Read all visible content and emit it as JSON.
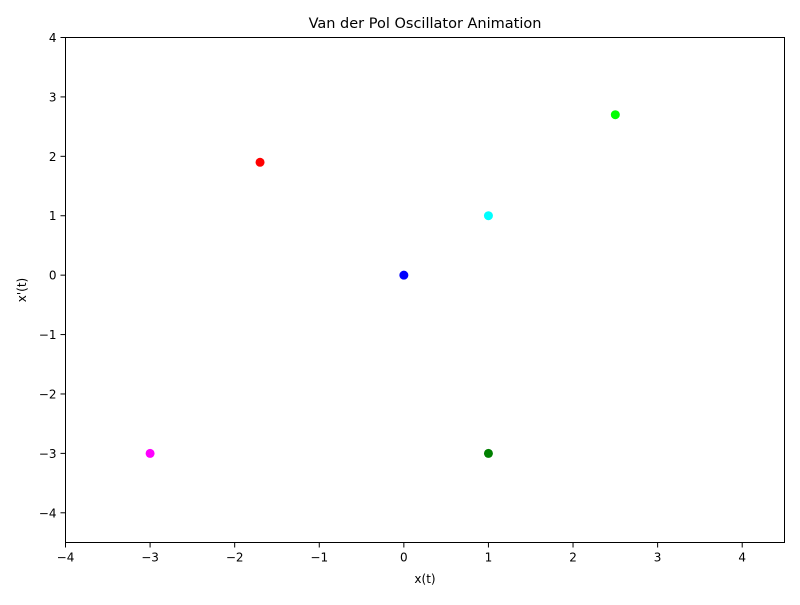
{
  "chart_data": {
    "type": "scatter",
    "title": "Van der Pol Oscillator Animation",
    "xlabel": "x(t)",
    "ylabel": "x'(t)",
    "xlim": [
      -4,
      4.5
    ],
    "ylim": [
      -4.5,
      4
    ],
    "grid": false,
    "x_ticks": [
      -4,
      -3,
      -2,
      -1,
      0,
      1,
      2,
      3,
      4
    ],
    "y_ticks": [
      -4,
      -3,
      -2,
      -1,
      0,
      1,
      2,
      3,
      4
    ],
    "x_tick_labels": [
      "−4",
      "−3",
      "−2",
      "−1",
      "0",
      "1",
      "2",
      "3",
      "4"
    ],
    "y_tick_labels": [
      "−4",
      "−3",
      "−2",
      "−1",
      "0",
      "1",
      "2",
      "3",
      "4"
    ],
    "points": [
      {
        "x": -1.7,
        "y": 1.9,
        "color": "#ff0000"
      },
      {
        "x": 2.5,
        "y": 2.7,
        "color": "#00ff00"
      },
      {
        "x": 0,
        "y": 0,
        "color": "#0000ff"
      },
      {
        "x": 1,
        "y": 1,
        "color": "#00ffff"
      },
      {
        "x": -3,
        "y": -3,
        "color": "#ff00ff"
      },
      {
        "x": 1,
        "y": -3,
        "color": "#008000"
      }
    ]
  }
}
